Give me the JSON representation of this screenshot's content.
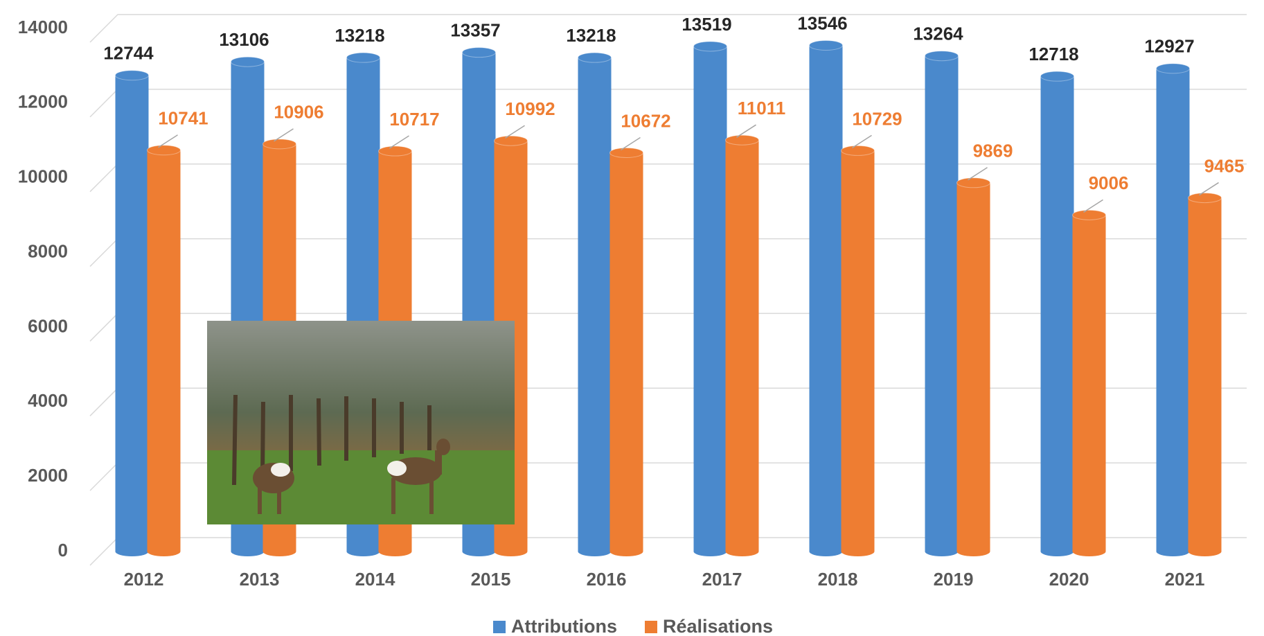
{
  "chart_data": {
    "type": "bar",
    "categories": [
      "2012",
      "2013",
      "2014",
      "2015",
      "2016",
      "2017",
      "2018",
      "2019",
      "2020",
      "2021"
    ],
    "series": [
      {
        "name": "Attributions",
        "color": "#4a89cc",
        "values": [
          12744,
          13106,
          13218,
          13357,
          13218,
          13519,
          13546,
          13264,
          12718,
          12927
        ]
      },
      {
        "name": "Réalisations",
        "color": "#ee7d32",
        "values": [
          10741,
          10906,
          10717,
          10992,
          10672,
          11011,
          10729,
          9869,
          9006,
          9465
        ]
      }
    ],
    "ylim": [
      0,
      14000
    ],
    "yticks": [
      0,
      2000,
      4000,
      6000,
      8000,
      10000,
      12000,
      14000
    ],
    "grid": true,
    "legend": "bottom"
  }
}
